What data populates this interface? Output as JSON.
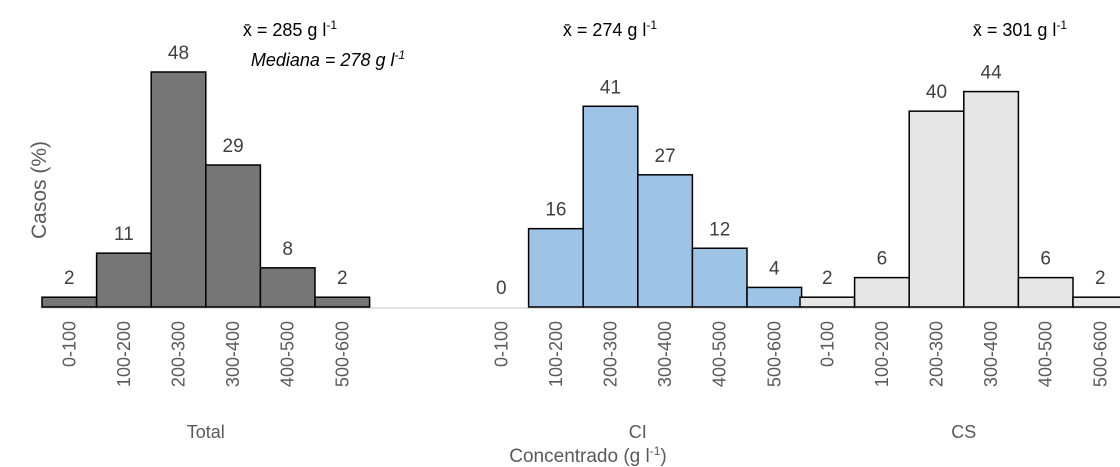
{
  "chart_data": {
    "type": "bar",
    "ylabel": "Casos (%)",
    "xlabel_main": "Concentrado (g l",
    "xlabel_main_sup": "-1",
    "xlabel_main_suffix": ")",
    "categories": [
      "0-100",
      "100-200",
      "200-300",
      "300-400",
      "400-500",
      "500-600"
    ],
    "ylim": [
      0,
      48
    ],
    "grid": false,
    "panels": [
      {
        "name": "Total",
        "mean_label": "x̄ = 285 g l",
        "mean_sup": "-1",
        "median_label": "Mediana = 278 g l",
        "median_sup": "-1",
        "values": [
          2,
          11,
          48,
          29,
          8,
          2
        ],
        "color": "#767676"
      },
      {
        "name": "CI",
        "mean_label": "x̄ = 274 g l",
        "mean_sup": "-1",
        "values": [
          0,
          16,
          41,
          27,
          12,
          4
        ],
        "color": "#9dc3e6"
      },
      {
        "name": "CS",
        "mean_label": "x̄ = 301 g l",
        "mean_sup": "-1",
        "values": [
          2,
          6,
          40,
          44,
          6,
          2
        ],
        "color": "#e7e6e6"
      }
    ]
  }
}
